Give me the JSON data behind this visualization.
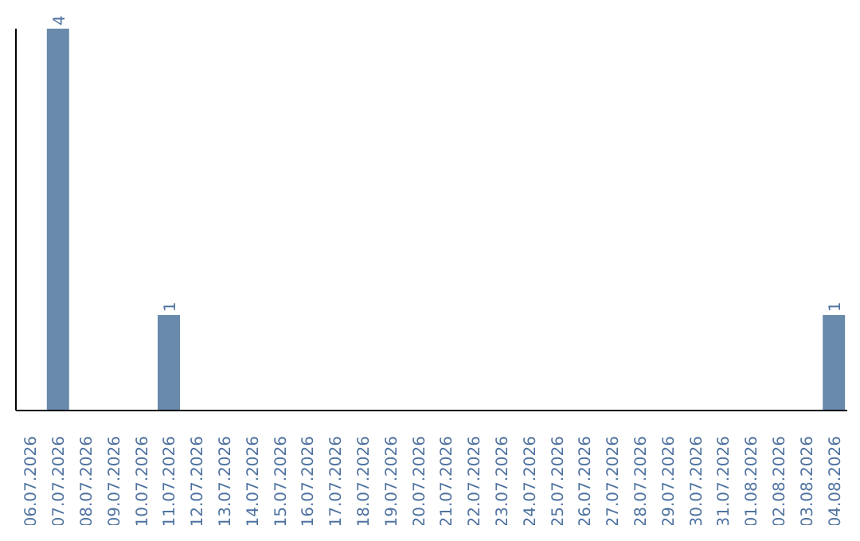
{
  "chart_data": {
    "type": "bar",
    "categories": [
      "06.07.2026",
      "07.07.2026",
      "08.07.2026",
      "09.07.2026",
      "10.07.2026",
      "11.07.2026",
      "12.07.2026",
      "13.07.2026",
      "14.07.2026",
      "15.07.2026",
      "16.07.2026",
      "17.07.2026",
      "18.07.2026",
      "19.07.2026",
      "20.07.2026",
      "21.07.2026",
      "22.07.2026",
      "23.07.2026",
      "24.07.2026",
      "25.07.2026",
      "26.07.2026",
      "27.07.2026",
      "28.07.2026",
      "29.07.2026",
      "30.07.2026",
      "31.07.2026",
      "01.08.2026",
      "02.08.2026",
      "03.08.2026",
      "04.08.2026"
    ],
    "values": [
      0,
      4,
      0,
      0,
      0,
      1,
      0,
      0,
      0,
      0,
      0,
      0,
      0,
      0,
      0,
      0,
      0,
      0,
      0,
      0,
      0,
      0,
      0,
      0,
      0,
      0,
      0,
      0,
      0,
      1
    ],
    "value_labels": [
      null,
      "4",
      null,
      null,
      null,
      "1",
      null,
      null,
      null,
      null,
      null,
      null,
      null,
      null,
      null,
      null,
      null,
      null,
      null,
      null,
      null,
      null,
      null,
      null,
      null,
      null,
      null,
      null,
      null,
      "1"
    ],
    "color": "#6a8aab",
    "grid": false,
    "legend": false
  }
}
